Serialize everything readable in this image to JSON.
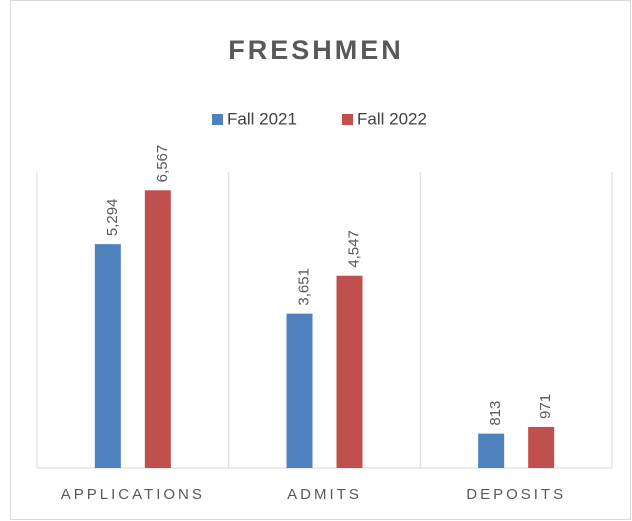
{
  "chart_data": {
    "type": "bar",
    "title": "FRESHMEN",
    "categories": [
      "APPLICATIONS",
      "ADMITS",
      "DEPOSITS"
    ],
    "series": [
      {
        "name": "Fall 2021",
        "color": "#4f81bd",
        "values": [
          5294,
          3651,
          813
        ],
        "value_labels": [
          "5,294",
          "3,651",
          "813"
        ]
      },
      {
        "name": "Fall 2022",
        "color": "#c0504d",
        "values": [
          6567,
          4547,
          971
        ],
        "value_labels": [
          "6,567",
          "4,547",
          "971"
        ]
      }
    ],
    "ylim": [
      0,
      7000
    ],
    "legend": "top"
  }
}
